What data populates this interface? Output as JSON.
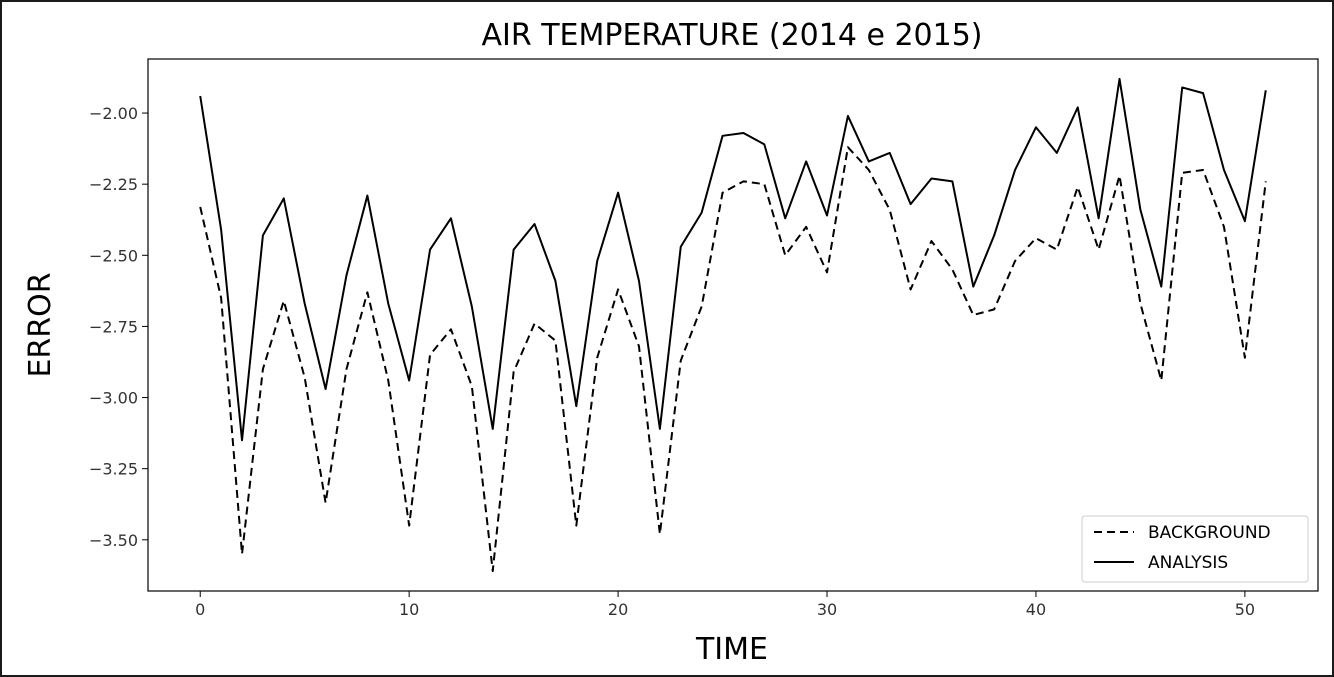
{
  "chart_data": {
    "type": "line",
    "title": "AIR TEMPERATURE (2014 e 2015)",
    "xlabel": "TIME",
    "ylabel": "ERROR",
    "xlim": [
      -2.5,
      53.5
    ],
    "ylim": [
      -3.68,
      -1.81
    ],
    "x_ticks": [
      0,
      10,
      20,
      30,
      40,
      50
    ],
    "x_tick_labels": [
      "0",
      "10",
      "20",
      "30",
      "40",
      "50"
    ],
    "y_ticks": [
      -3.5,
      -3.25,
      -3.0,
      -2.75,
      -2.5,
      -2.25,
      -2.0
    ],
    "y_tick_labels": [
      "−3.50",
      "−3.25",
      "−3.00",
      "−2.75",
      "−2.50",
      "−2.25",
      "−2.00"
    ],
    "grid": false,
    "legend_position": "lower-right",
    "x": [
      0,
      1,
      2,
      3,
      4,
      5,
      6,
      7,
      8,
      9,
      10,
      11,
      12,
      13,
      14,
      15,
      16,
      17,
      18,
      19,
      20,
      21,
      22,
      23,
      24,
      25,
      26,
      27,
      28,
      29,
      30,
      31,
      32,
      33,
      34,
      35,
      36,
      37,
      38,
      39,
      40,
      41,
      42,
      43,
      44,
      45,
      46,
      47,
      48,
      49,
      50,
      51
    ],
    "series": [
      {
        "name": "BACKGROUND",
        "style": "dashed",
        "color": "#000000",
        "values": [
          -2.33,
          -2.65,
          -3.55,
          -2.9,
          -2.66,
          -2.93,
          -3.37,
          -2.9,
          -2.63,
          -2.94,
          -3.45,
          -2.85,
          -2.76,
          -2.96,
          -3.61,
          -2.91,
          -2.74,
          -2.8,
          -3.45,
          -2.86,
          -2.62,
          -2.82,
          -3.48,
          -2.87,
          -2.68,
          -2.28,
          -2.24,
          -2.25,
          -2.5,
          -2.4,
          -2.56,
          -2.12,
          -2.2,
          -2.34,
          -2.62,
          -2.45,
          -2.55,
          -2.71,
          -2.69,
          -2.52,
          -2.44,
          -2.48,
          -2.26,
          -2.48,
          -2.22,
          -2.67,
          -2.94,
          -2.21,
          -2.2,
          -2.4,
          -2.86,
          -2.24
        ]
      },
      {
        "name": "ANALYSIS",
        "style": "solid",
        "color": "#000000",
        "values": [
          -1.94,
          -2.41,
          -3.15,
          -2.43,
          -2.3,
          -2.67,
          -2.97,
          -2.57,
          -2.29,
          -2.67,
          -2.94,
          -2.48,
          -2.37,
          -2.68,
          -3.11,
          -2.48,
          -2.39,
          -2.59,
          -3.03,
          -2.52,
          -2.28,
          -2.59,
          -3.11,
          -2.47,
          -2.35,
          -2.08,
          -2.07,
          -2.11,
          -2.37,
          -2.17,
          -2.36,
          -2.01,
          -2.17,
          -2.14,
          -2.32,
          -2.23,
          -2.24,
          -2.61,
          -2.43,
          -2.2,
          -2.05,
          -2.14,
          -1.98,
          -2.37,
          -1.88,
          -2.34,
          -2.61,
          -1.91,
          -1.93,
          -2.2,
          -2.38,
          -1.92
        ]
      }
    ]
  }
}
